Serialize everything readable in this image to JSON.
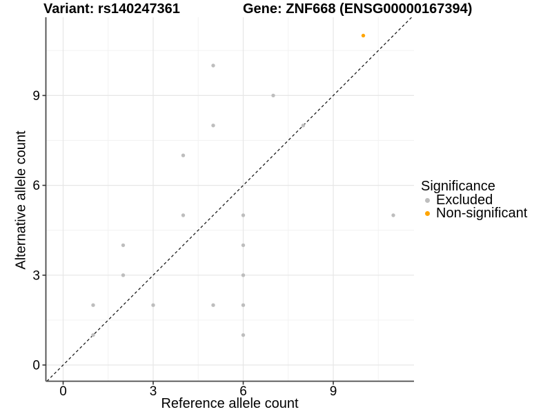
{
  "titles": {
    "variant": "Variant: rs140247361",
    "gene": "Gene: ZNF668 (ENSG00000167394)"
  },
  "chart_data": {
    "type": "scatter",
    "xlabel": "Reference allele count",
    "ylabel": "Alternative allele count",
    "x_ticks": [
      0,
      3,
      6,
      9
    ],
    "y_ticks": [
      0,
      3,
      6,
      9
    ],
    "x_minor_ticks": [
      1.5,
      4.5,
      7.5,
      10.5
    ],
    "y_minor_ticks": [
      1.5,
      4.5,
      7.5,
      10.5
    ],
    "xlim": [
      -0.58,
      11.7
    ],
    "ylim": [
      -0.55,
      11.6
    ],
    "grid": true,
    "identity_line": {
      "slope": 1,
      "intercept": 0,
      "style": "dashed",
      "color": "#1a1a1a"
    },
    "legend": {
      "title": "Significance",
      "position": "right"
    },
    "series": [
      {
        "name": "Excluded",
        "color": "#BEBEBE",
        "points": [
          [
            1,
            1
          ],
          [
            1,
            2
          ],
          [
            3,
            2
          ],
          [
            5,
            2
          ],
          [
            6,
            1
          ],
          [
            6,
            2
          ],
          [
            2,
            3
          ],
          [
            6,
            3
          ],
          [
            2,
            4
          ],
          [
            6,
            4
          ],
          [
            4,
            5
          ],
          [
            6,
            5
          ],
          [
            11,
            5
          ],
          [
            4,
            7
          ],
          [
            5,
            8
          ],
          [
            8,
            8
          ],
          [
            7,
            9
          ],
          [
            5,
            10
          ]
        ]
      },
      {
        "name": "Non-significant",
        "color": "#FFA500",
        "points": [
          [
            10,
            11
          ]
        ]
      }
    ]
  },
  "colors": {
    "background": "#ffffff",
    "major_grid": "#e6e6e6",
    "minor_grid": "#f2f2f2",
    "axis_line": "#4a4a4a",
    "tick_mark": "#333333",
    "text": "#000000"
  }
}
